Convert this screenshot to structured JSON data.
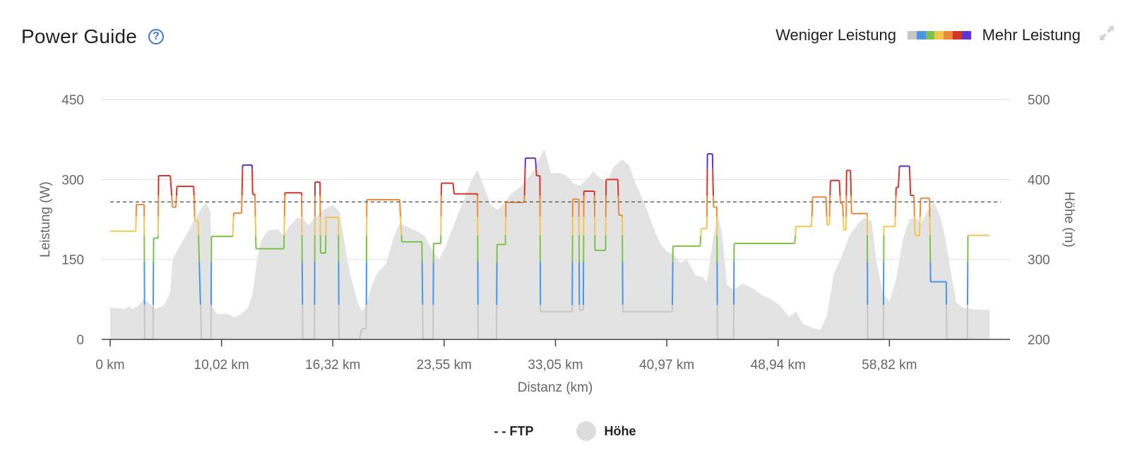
{
  "header": {
    "title": "Power Guide",
    "help_icon": "question-circle-icon"
  },
  "scale": {
    "low_label": "Weniger Leistung",
    "high_label": "Mehr Leistung",
    "colors": [
      "#c6c6c6",
      "#4b93e6",
      "#7cc24a",
      "#f3c64f",
      "#ea8a3a",
      "#d1362d",
      "#5a35d8"
    ]
  },
  "expand_icon": "expand-arrows-icon",
  "legend": {
    "ftp_label": "- - FTP",
    "elevation_label": "Höhe"
  },
  "chart_data": {
    "type": "line",
    "xlabel": "Distanz (km)",
    "ylabel": "Leistung (W)",
    "ylabel_right": "Höhe (m)",
    "xlim": [
      0,
      80
    ],
    "ylim": [
      0,
      450
    ],
    "ylim_right": [
      200,
      500
    ],
    "x_ticks": [
      {
        "value": 0,
        "label": "0 km"
      },
      {
        "value": 10,
        "label": "10,02 km"
      },
      {
        "value": 20,
        "label": "16,32 km"
      },
      {
        "value": 30,
        "label": "23,55 km"
      },
      {
        "value": 40,
        "label": "33,05 km"
      },
      {
        "value": 50,
        "label": "40,97 km"
      },
      {
        "value": 60,
        "label": "48,94 km"
      },
      {
        "value": 70,
        "label": "58,82 km"
      }
    ],
    "y_ticks": [
      {
        "value": 0,
        "label": "0"
      },
      {
        "value": 150,
        "label": "150"
      },
      {
        "value": 300,
        "label": "300"
      },
      {
        "value": 450,
        "label": "450"
      }
    ],
    "y_ticks_right": [
      {
        "value": 200,
        "label": "200"
      },
      {
        "value": 300,
        "label": "300"
      },
      {
        "value": 400,
        "label": "400"
      },
      {
        "value": 500,
        "label": "500"
      }
    ],
    "ftp": 258,
    "power_bands": [
      0,
      65,
      145,
      195,
      230,
      270,
      320
    ],
    "power": [
      [
        0,
        203
      ],
      [
        2.3,
        203
      ],
      [
        2.35,
        253
      ],
      [
        3.05,
        253
      ],
      [
        3.1,
        0
      ],
      [
        3.85,
        0
      ],
      [
        3.9,
        190
      ],
      [
        4.3,
        190
      ],
      [
        4.35,
        307
      ],
      [
        5.4,
        307
      ],
      [
        5.6,
        248
      ],
      [
        5.9,
        248
      ],
      [
        6.0,
        287
      ],
      [
        7.5,
        287
      ],
      [
        7.6,
        222
      ],
      [
        7.9,
        222
      ],
      [
        8.2,
        0
      ],
      [
        9.05,
        0
      ],
      [
        9.1,
        193
      ],
      [
        11.0,
        193
      ],
      [
        11.1,
        237
      ],
      [
        11.8,
        237
      ],
      [
        11.9,
        327
      ],
      [
        12.75,
        327
      ],
      [
        12.8,
        272
      ],
      [
        13.0,
        272
      ],
      [
        13.1,
        170
      ],
      [
        15.6,
        170
      ],
      [
        15.7,
        275
      ],
      [
        17.2,
        275
      ],
      [
        17.3,
        0
      ],
      [
        18.35,
        0
      ],
      [
        18.4,
        295
      ],
      [
        18.85,
        295
      ],
      [
        18.9,
        162
      ],
      [
        19.35,
        162
      ],
      [
        19.4,
        229
      ],
      [
        20.5,
        229
      ],
      [
        20.55,
        0
      ],
      [
        22.4,
        0
      ],
      [
        22.6,
        20
      ],
      [
        23.0,
        20
      ],
      [
        23.05,
        262
      ],
      [
        26.0,
        262
      ],
      [
        26.2,
        183
      ],
      [
        28.0,
        183
      ],
      [
        28.1,
        0
      ],
      [
        29.0,
        0
      ],
      [
        29.05,
        180
      ],
      [
        29.7,
        180
      ],
      [
        29.75,
        293
      ],
      [
        30.8,
        293
      ],
      [
        30.9,
        273
      ],
      [
        33.0,
        273
      ],
      [
        33.05,
        0
      ],
      [
        34.7,
        0
      ],
      [
        34.75,
        178
      ],
      [
        35.5,
        178
      ],
      [
        35.55,
        257
      ],
      [
        37.2,
        257
      ],
      [
        37.3,
        340
      ],
      [
        38.2,
        340
      ],
      [
        38.3,
        307
      ],
      [
        38.6,
        307
      ],
      [
        38.65,
        52
      ],
      [
        41.5,
        52
      ],
      [
        41.55,
        263
      ],
      [
        42.1,
        263
      ],
      [
        42.15,
        55
      ],
      [
        42.5,
        55
      ],
      [
        42.55,
        278
      ],
      [
        43.5,
        278
      ],
      [
        43.55,
        167
      ],
      [
        44.5,
        167
      ],
      [
        44.55,
        300
      ],
      [
        45.6,
        300
      ],
      [
        45.7,
        233
      ],
      [
        46.0,
        233
      ],
      [
        46.05,
        52
      ],
      [
        50.5,
        52
      ],
      [
        50.55,
        175
      ],
      [
        53.0,
        175
      ],
      [
        53.1,
        208
      ],
      [
        53.6,
        208
      ],
      [
        53.65,
        348
      ],
      [
        54.1,
        348
      ],
      [
        54.2,
        248
      ],
      [
        54.5,
        248
      ],
      [
        54.55,
        0
      ],
      [
        56.0,
        0
      ],
      [
        56.05,
        180
      ],
      [
        61.5,
        180
      ],
      [
        61.6,
        212
      ],
      [
        63.0,
        212
      ],
      [
        63.1,
        267
      ],
      [
        64.3,
        267
      ],
      [
        64.4,
        215
      ],
      [
        64.6,
        215
      ],
      [
        64.7,
        298
      ],
      [
        65.5,
        298
      ],
      [
        65.6,
        255
      ],
      [
        65.8,
        255
      ],
      [
        65.9,
        205
      ],
      [
        66.1,
        205
      ],
      [
        66.15,
        317
      ],
      [
        66.5,
        317
      ],
      [
        66.6,
        236
      ],
      [
        68.0,
        236
      ],
      [
        68.05,
        0
      ],
      [
        69.45,
        0
      ],
      [
        69.5,
        212
      ],
      [
        70.5,
        212
      ],
      [
        70.6,
        285
      ],
      [
        70.8,
        285
      ],
      [
        70.9,
        325
      ],
      [
        71.8,
        325
      ],
      [
        71.9,
        270
      ],
      [
        72.2,
        270
      ],
      [
        72.3,
        195
      ],
      [
        72.7,
        195
      ],
      [
        72.8,
        265
      ],
      [
        73.6,
        265
      ],
      [
        73.7,
        108
      ],
      [
        75.1,
        108
      ],
      [
        75.15,
        0
      ],
      [
        77.0,
        0
      ],
      [
        77.05,
        195
      ],
      [
        79.0,
        195
      ]
    ],
    "elevation": [
      [
        0,
        240
      ],
      [
        1.4,
        238
      ],
      [
        1.7,
        242
      ],
      [
        2.0,
        238
      ],
      [
        2.5,
        242
      ],
      [
        3.0,
        250
      ],
      [
        3.5,
        246
      ],
      [
        4.0,
        238
      ],
      [
        4.8,
        242
      ],
      [
        5.4,
        258
      ],
      [
        5.6,
        300
      ],
      [
        6.2,
        315
      ],
      [
        7.0,
        335
      ],
      [
        8.0,
        360
      ],
      [
        8.6,
        372
      ],
      [
        9.0,
        360
      ],
      [
        9.2,
        240
      ],
      [
        9.6,
        232
      ],
      [
        10.5,
        232
      ],
      [
        11.2,
        228
      ],
      [
        11.8,
        232
      ],
      [
        12.4,
        240
      ],
      [
        12.8,
        258
      ],
      [
        13.2,
        300
      ],
      [
        13.6,
        325
      ],
      [
        14.2,
        336
      ],
      [
        15.0,
        338
      ],
      [
        15.6,
        330
      ],
      [
        16.0,
        340
      ],
      [
        16.8,
        352
      ],
      [
        17.4,
        350
      ],
      [
        17.8,
        343
      ],
      [
        18.4,
        352
      ],
      [
        19.2,
        362
      ],
      [
        20.0,
        368
      ],
      [
        20.6,
        360
      ],
      [
        21.0,
        325
      ],
      [
        21.5,
        285
      ],
      [
        22.2,
        248
      ],
      [
        22.6,
        235
      ],
      [
        23.0,
        242
      ],
      [
        23.5,
        268
      ],
      [
        24.0,
        283
      ],
      [
        24.8,
        295
      ],
      [
        25.4,
        325
      ],
      [
        26.0,
        345
      ],
      [
        26.8,
        340
      ],
      [
        27.6,
        335
      ],
      [
        28.2,
        330
      ],
      [
        29.0,
        310
      ],
      [
        29.5,
        300
      ],
      [
        30.0,
        312
      ],
      [
        30.8,
        340
      ],
      [
        31.4,
        362
      ],
      [
        32.0,
        382
      ],
      [
        32.4,
        398
      ],
      [
        33.0,
        412
      ],
      [
        33.6,
        390
      ],
      [
        34.2,
        368
      ],
      [
        34.8,
        362
      ],
      [
        35.4,
        370
      ],
      [
        36.0,
        382
      ],
      [
        36.8,
        390
      ],
      [
        37.4,
        400
      ],
      [
        38.0,
        410
      ],
      [
        38.6,
        428
      ],
      [
        39.0,
        438
      ],
      [
        39.6,
        408
      ],
      [
        40.4,
        408
      ],
      [
        41.0,
        405
      ],
      [
        41.6,
        395
      ],
      [
        42.2,
        392
      ],
      [
        42.8,
        400
      ],
      [
        43.4,
        410
      ],
      [
        44.0,
        402
      ],
      [
        44.6,
        396
      ],
      [
        45.2,
        415
      ],
      [
        46.0,
        425
      ],
      [
        46.6,
        418
      ],
      [
        47.2,
        395
      ],
      [
        48.0,
        370
      ],
      [
        48.8,
        340
      ],
      [
        49.4,
        320
      ],
      [
        50.0,
        310
      ],
      [
        50.6,
        306
      ],
      [
        51.2,
        296
      ],
      [
        51.8,
        300
      ],
      [
        52.6,
        280
      ],
      [
        53.2,
        278
      ],
      [
        53.6,
        272
      ],
      [
        54.2,
        330
      ],
      [
        54.6,
        355
      ],
      [
        55.0,
        330
      ],
      [
        55.4,
        268
      ],
      [
        56.0,
        262
      ],
      [
        56.8,
        270
      ],
      [
        57.6,
        265
      ],
      [
        58.6,
        255
      ],
      [
        59.4,
        250
      ],
      [
        60.2,
        242
      ],
      [
        61.0,
        228
      ],
      [
        61.6,
        235
      ],
      [
        62.2,
        220
      ],
      [
        63.0,
        215
      ],
      [
        63.8,
        212
      ],
      [
        64.4,
        230
      ],
      [
        65.0,
        282
      ],
      [
        65.6,
        300
      ],
      [
        66.4,
        330
      ],
      [
        67.2,
        345
      ],
      [
        67.8,
        352
      ],
      [
        68.4,
        348
      ],
      [
        68.8,
        300
      ],
      [
        69.4,
        258
      ],
      [
        70.0,
        248
      ],
      [
        70.6,
        275
      ],
      [
        71.2,
        325
      ],
      [
        71.8,
        350
      ],
      [
        72.4,
        352
      ],
      [
        72.8,
        345
      ],
      [
        73.4,
        360
      ],
      [
        74.0,
        372
      ],
      [
        74.6,
        352
      ],
      [
        75.0,
        328
      ],
      [
        75.6,
        278
      ],
      [
        76.0,
        246
      ],
      [
        76.6,
        240
      ],
      [
        77.4,
        238
      ],
      [
        78.2,
        237
      ],
      [
        79.0,
        237
      ]
    ]
  }
}
